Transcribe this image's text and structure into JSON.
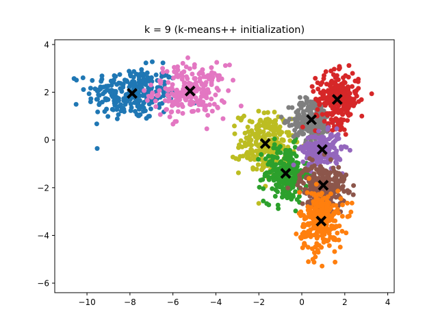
{
  "chart_data": {
    "type": "scatter",
    "title": "k = 9 (k-means++ initialization)",
    "xlabel": "",
    "ylabel": "",
    "xlim": [
      -11.5,
      4.3
    ],
    "ylim": [
      -6.4,
      4.2
    ],
    "x_ticks": [
      -10,
      -8,
      -6,
      -4,
      -2,
      0,
      2,
      4
    ],
    "y_ticks": [
      -6,
      -4,
      -2,
      0,
      2,
      4
    ],
    "x_tick_labels": [
      "−10",
      "−8",
      "−6",
      "−4",
      "−2",
      "0",
      "2",
      "4"
    ],
    "y_tick_labels": [
      "−6",
      "−4",
      "−2",
      "0",
      "2",
      "4"
    ],
    "grid": false,
    "legend": "none",
    "centroid_marker": "black x",
    "clusters": [
      {
        "color": "#1f77b4",
        "centroid": [
          -7.9,
          1.95
        ],
        "spread": [
          1.05,
          0.55
        ],
        "count": 260
      },
      {
        "color": "#e377c2",
        "centroid": [
          -5.2,
          2.05
        ],
        "spread": [
          0.85,
          0.55
        ],
        "count": 220
      },
      {
        "color": "#bcbd22",
        "centroid": [
          -1.7,
          -0.15
        ],
        "spread": [
          0.6,
          0.65
        ],
        "count": 230
      },
      {
        "color": "#2ca02c",
        "centroid": [
          -0.75,
          -1.4
        ],
        "spread": [
          0.5,
          0.6
        ],
        "count": 240
      },
      {
        "color": "#7f7f7f",
        "centroid": [
          0.45,
          0.85
        ],
        "spread": [
          0.45,
          0.45
        ],
        "count": 220
      },
      {
        "color": "#d62728",
        "centroid": [
          1.65,
          1.7
        ],
        "spread": [
          0.5,
          0.55
        ],
        "count": 260
      },
      {
        "color": "#9467bd",
        "centroid": [
          0.95,
          -0.4
        ],
        "spread": [
          0.45,
          0.35
        ],
        "count": 200
      },
      {
        "color": "#8c564b",
        "centroid": [
          1.0,
          -1.9
        ],
        "spread": [
          0.55,
          0.45
        ],
        "count": 240
      },
      {
        "color": "#ff7f0e",
        "centroid": [
          0.9,
          -3.4
        ],
        "spread": [
          0.5,
          0.65
        ],
        "count": 260
      }
    ]
  }
}
